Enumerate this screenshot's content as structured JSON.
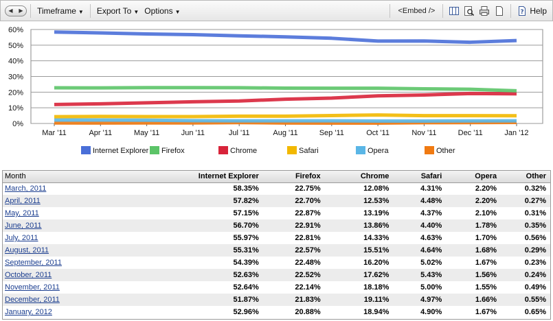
{
  "toolbar": {
    "back_glyph": "◀",
    "forward_glyph": "▶",
    "timeframe_label": "Timeframe",
    "export_label": "Export To",
    "options_label": "Options",
    "embed_label": "<Embed />",
    "help_label": "Help",
    "icons": [
      "columns-icon",
      "zoom-icon",
      "print-icon",
      "page-icon",
      "help-icon"
    ]
  },
  "chart_data": {
    "type": "line",
    "categories": [
      "Mar '11",
      "Apr '11",
      "May '11",
      "Jun '11",
      "Jul '11",
      "Aug '11",
      "Sep '11",
      "Oct '11",
      "Nov '11",
      "Dec '11",
      "Jan '12"
    ],
    "ylim": [
      0,
      60
    ],
    "yticks": [
      "0%",
      "10%",
      "20%",
      "30%",
      "40%",
      "50%",
      "60%"
    ],
    "ytick_values": [
      0,
      10,
      20,
      30,
      40,
      50,
      60
    ],
    "grid": true,
    "legend_position": "bottom",
    "series": [
      {
        "name": "Internet Explorer",
        "color": "#4a6fd8",
        "values": [
          58.35,
          57.82,
          57.15,
          56.7,
          55.97,
          55.31,
          54.39,
          52.63,
          52.64,
          51.87,
          52.96
        ]
      },
      {
        "name": "Firefox",
        "color": "#5cc468",
        "values": [
          22.75,
          22.7,
          22.87,
          22.91,
          22.81,
          22.57,
          22.48,
          22.52,
          22.14,
          21.83,
          20.88
        ]
      },
      {
        "name": "Chrome",
        "color": "#d8243a",
        "values": [
          12.08,
          12.53,
          13.19,
          13.86,
          14.33,
          15.51,
          16.2,
          17.62,
          18.18,
          19.11,
          18.94
        ]
      },
      {
        "name": "Safari",
        "color": "#f2b800",
        "values": [
          4.31,
          4.48,
          4.37,
          4.4,
          4.63,
          4.64,
          5.02,
          5.43,
          5.0,
          4.97,
          4.9
        ]
      },
      {
        "name": "Opera",
        "color": "#5ab6e6",
        "values": [
          2.2,
          2.2,
          2.1,
          1.78,
          1.7,
          1.68,
          1.67,
          1.56,
          1.55,
          1.66,
          1.67
        ]
      },
      {
        "name": "Other",
        "color": "#f07a12",
        "values": [
          0.32,
          0.27,
          0.31,
          0.35,
          0.56,
          0.29,
          0.23,
          0.24,
          0.49,
          0.55,
          0.65
        ]
      }
    ]
  },
  "table": {
    "headers": [
      "Month",
      "Internet Explorer",
      "Firefox",
      "Chrome",
      "Safari",
      "Opera",
      "Other"
    ],
    "rows": [
      [
        "March, 2011",
        "58.35%",
        "22.75%",
        "12.08%",
        "4.31%",
        "2.20%",
        "0.32%"
      ],
      [
        "April, 2011",
        "57.82%",
        "22.70%",
        "12.53%",
        "4.48%",
        "2.20%",
        "0.27%"
      ],
      [
        "May, 2011",
        "57.15%",
        "22.87%",
        "13.19%",
        "4.37%",
        "2.10%",
        "0.31%"
      ],
      [
        "June, 2011",
        "56.70%",
        "22.91%",
        "13.86%",
        "4.40%",
        "1.78%",
        "0.35%"
      ],
      [
        "July, 2011",
        "55.97%",
        "22.81%",
        "14.33%",
        "4.63%",
        "1.70%",
        "0.56%"
      ],
      [
        "August, 2011",
        "55.31%",
        "22.57%",
        "15.51%",
        "4.64%",
        "1.68%",
        "0.29%"
      ],
      [
        "September, 2011",
        "54.39%",
        "22.48%",
        "16.20%",
        "5.02%",
        "1.67%",
        "0.23%"
      ],
      [
        "October, 2011",
        "52.63%",
        "22.52%",
        "17.62%",
        "5.43%",
        "1.56%",
        "0.24%"
      ],
      [
        "November, 2011",
        "52.64%",
        "22.14%",
        "18.18%",
        "5.00%",
        "1.55%",
        "0.49%"
      ],
      [
        "December, 2011",
        "51.87%",
        "21.83%",
        "19.11%",
        "4.97%",
        "1.66%",
        "0.55%"
      ],
      [
        "January, 2012",
        "52.96%",
        "20.88%",
        "18.94%",
        "4.90%",
        "1.67%",
        "0.65%"
      ]
    ]
  }
}
